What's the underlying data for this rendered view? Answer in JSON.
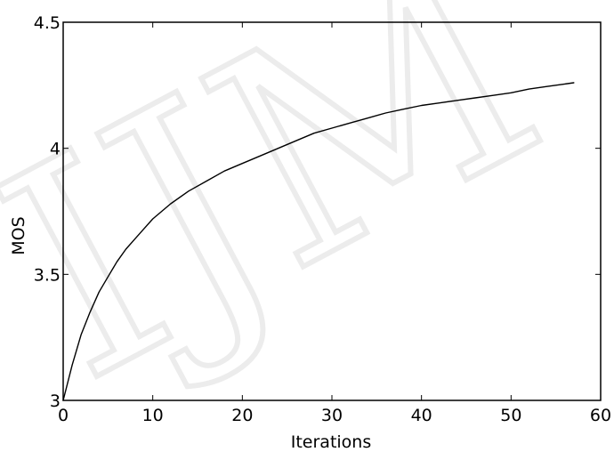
{
  "chart_data": {
    "type": "line",
    "title": "",
    "xlabel": "Iterations",
    "ylabel": "MOS",
    "xlim": [
      0,
      60
    ],
    "ylim": [
      3,
      4.5
    ],
    "x_ticks": [
      "0",
      "10",
      "20",
      "30",
      "40",
      "50",
      "60"
    ],
    "y_ticks": [
      "3",
      "3.5",
      "4",
      "4.5"
    ],
    "grid": false,
    "legend": "none",
    "watermark": "IJM",
    "colors": {
      "line": "#000000",
      "axes": "#000000",
      "background": "#ffffff",
      "watermark": "#ececec"
    },
    "series": [
      {
        "x": [
          0,
          1,
          2,
          3,
          4,
          5,
          6,
          7,
          8,
          9,
          10,
          12,
          14,
          16,
          18,
          20,
          22,
          24,
          26,
          28,
          30,
          32,
          34,
          36,
          38,
          40,
          42,
          44,
          46,
          48,
          50,
          52,
          54,
          56,
          57
        ],
        "values": [
          3.0,
          3.14,
          3.26,
          3.35,
          3.43,
          3.49,
          3.55,
          3.6,
          3.64,
          3.68,
          3.72,
          3.78,
          3.83,
          3.87,
          3.91,
          3.94,
          3.97,
          4.0,
          4.03,
          4.06,
          4.08,
          4.1,
          4.12,
          4.14,
          4.155,
          4.17,
          4.18,
          4.19,
          4.2,
          4.21,
          4.22,
          4.235,
          4.245,
          4.255,
          4.26
        ]
      }
    ]
  }
}
